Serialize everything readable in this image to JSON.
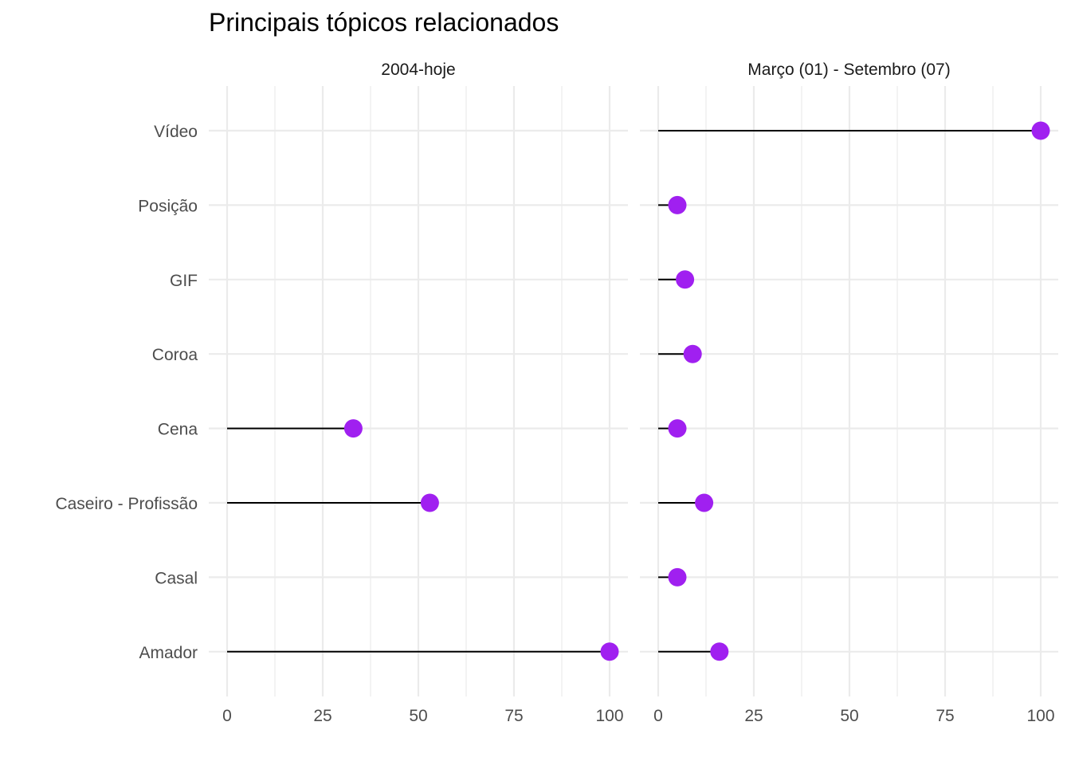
{
  "chart_data": {
    "type": "lollipop",
    "title": "Principais tópicos relacionados",
    "xlabel": "",
    "ylabel": "",
    "xlim": [
      0,
      100
    ],
    "x_ticks": [
      "0",
      "25",
      "50",
      "75",
      "100"
    ],
    "categories": [
      "Vídeo",
      "Posição",
      "GIF",
      "Coroa",
      "Cena",
      "Caseiro - Profissão",
      "Casal",
      "Amador"
    ],
    "grid": true,
    "colors": {
      "point": "#a020f0",
      "segment": "#000000",
      "grid": "#ebebeb"
    },
    "panels": [
      {
        "name": "2004-hoje",
        "values": {
          "Vídeo": null,
          "Posição": null,
          "GIF": null,
          "Coroa": null,
          "Cena": 33,
          "Caseiro - Profissão": 53,
          "Casal": null,
          "Amador": 100
        }
      },
      {
        "name": "Março (01) - Setembro (07)",
        "values": {
          "Vídeo": 100,
          "Posição": 5,
          "GIF": 7,
          "Coroa": 9,
          "Cena": 5,
          "Caseiro - Profissão": 12,
          "Casal": 5,
          "Amador": 16
        }
      }
    ]
  }
}
